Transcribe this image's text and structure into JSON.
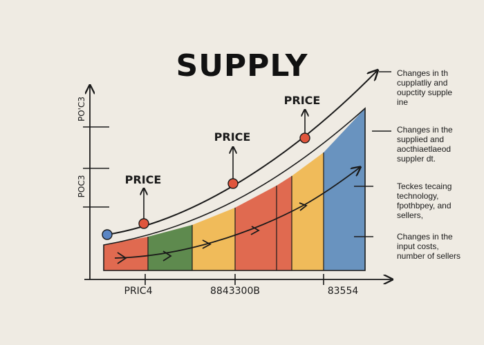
{
  "title": "SUPPLY",
  "y_axis_labels": [
    "PO'C3",
    "POC3"
  ],
  "x_axis_labels": [
    "PRIC4",
    "8843300B",
    "83554"
  ],
  "price_labels": [
    "PRICE",
    "PRICE",
    "PRICE"
  ],
  "annotations": [
    [
      "Changes in th",
      "cupplatliy and",
      "oupctity supple",
      "ine"
    ],
    [
      "Changes in the",
      "supplied and",
      "aocthiaetlaeod",
      "suppler dt."
    ],
    [
      "Teckes tecaing",
      "technology,",
      "fpothbpey, and",
      "sellers,"
    ],
    [
      "Changes in the",
      "input costs,",
      "number of sellers"
    ]
  ],
  "colors": {
    "background": "#efebe3",
    "band_red": "#e06a50",
    "band_green": "#5e8a4e",
    "band_yellow": "#f0bb5a",
    "band_blue": "#6993bf",
    "point_red": "#e0553c",
    "point_blue": "#5b86c4",
    "ink": "#1a1a1a"
  },
  "bands": [
    "red",
    "green",
    "yellow",
    "red",
    "red",
    "yellow",
    "blue"
  ]
}
